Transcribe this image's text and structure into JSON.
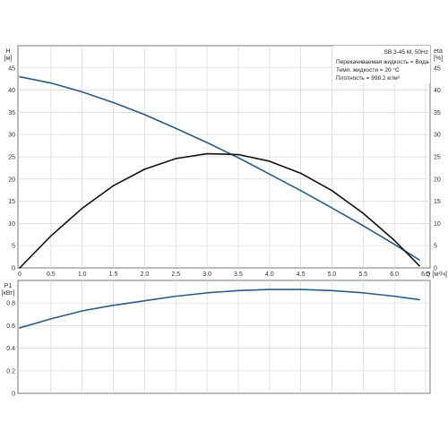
{
  "chart_data": [
    {
      "type": "line",
      "xlabel": "Q [м³/ч]",
      "ylabel": "H\n[м]",
      "y2label": "eta\n[%]",
      "xlim": [
        0,
        6.5
      ],
      "ylim": [
        0,
        50
      ],
      "y2lim": [
        0,
        50
      ],
      "grid": true,
      "x_ticks": [
        "0",
        "0.5",
        "1.0",
        "1.5",
        "2.0",
        "2.5",
        "3.0",
        "3.5",
        "4.0",
        "4.5",
        "5.0",
        "5.5",
        "6.0",
        "6.5"
      ],
      "y_ticks": [
        "0",
        "5",
        "10",
        "15",
        "20",
        "25",
        "30",
        "35",
        "40",
        "45"
      ],
      "y2_ticks": [
        "0",
        "5",
        "10",
        "15",
        "20",
        "25",
        "30",
        "35",
        "40",
        "45"
      ],
      "legend": {
        "title": "SB 3-45 M, 50Hz",
        "lines": [
          "Перекачиваемая жидкость = Вода",
          "Темп. жидкости = 20 °C",
          "Плотность = 998.2 кг/м³"
        ]
      },
      "series": [
        {
          "color": "#2a5c86",
          "x": [
            0,
            0.5,
            1.0,
            1.5,
            2.0,
            2.5,
            3.0,
            3.5,
            4.0,
            4.5,
            5.0,
            5.5,
            6.0,
            6.4
          ],
          "y": [
            43,
            41.6,
            39.6,
            37.2,
            34.5,
            31.4,
            28.2,
            24.8,
            21.1,
            17.4,
            13.5,
            9.5,
            5.3,
            1.8
          ]
        },
        {
          "color": "#111111",
          "axis": "right",
          "x": [
            0,
            0.5,
            1.0,
            1.5,
            2.0,
            2.5,
            3.0,
            3.5,
            4.0,
            4.5,
            5.0,
            5.5,
            6.0,
            6.4
          ],
          "y": [
            0,
            7.2,
            13.4,
            18.5,
            22.2,
            24.6,
            25.7,
            25.5,
            24.0,
            21.3,
            17.4,
            12.3,
            6.2,
            0.5
          ]
        }
      ]
    },
    {
      "type": "line",
      "ylabel": "P1\n[кВт]",
      "xlim": [
        0,
        6.5
      ],
      "ylim": [
        0,
        1.0
      ],
      "grid": true,
      "y_ticks": [
        "0",
        "0.2",
        "0.4",
        "0.6",
        "0.8"
      ],
      "series": [
        {
          "color": "#2a5c86",
          "x": [
            0,
            0.5,
            1.0,
            1.5,
            2.0,
            2.5,
            3.0,
            3.5,
            4.0,
            4.5,
            5.0,
            5.5,
            6.0,
            6.4
          ],
          "y": [
            0.58,
            0.66,
            0.73,
            0.78,
            0.82,
            0.86,
            0.89,
            0.91,
            0.92,
            0.92,
            0.91,
            0.89,
            0.86,
            0.83
          ]
        }
      ]
    }
  ]
}
